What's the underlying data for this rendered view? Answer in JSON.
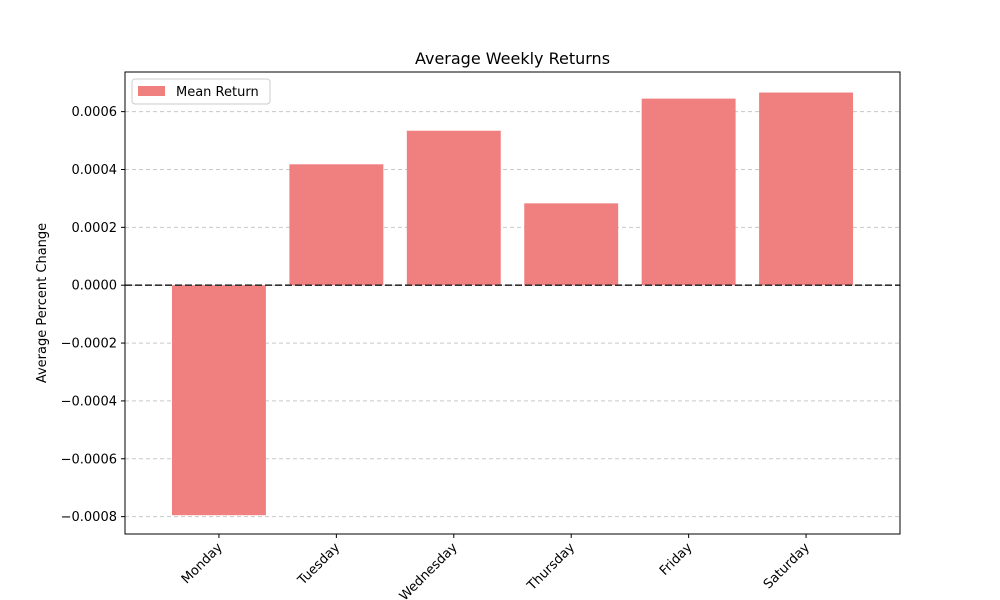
{
  "chart_data": {
    "type": "bar",
    "title": "Average Weekly Returns",
    "xlabel": "",
    "ylabel": "Average Percent Change",
    "categories": [
      "Monday",
      "Tuesday",
      "Wednesday",
      "Thursday",
      "Friday",
      "Saturday"
    ],
    "series": [
      {
        "name": "Mean Return",
        "color": "#f08080",
        "values": [
          -0.000795,
          0.000418,
          0.000534,
          0.000283,
          0.000645,
          0.000666
        ]
      }
    ],
    "ylim": [
      -0.00086,
      0.000737
    ],
    "yticks": [
      -0.0008,
      -0.0006,
      -0.0004,
      -0.0002,
      0.0,
      0.0002,
      0.0004,
      0.0006
    ],
    "ytick_labels": [
      "−0.0008",
      "−0.0006",
      "−0.0004",
      "−0.0002",
      "0.0000",
      "0.0002",
      "0.0004",
      "0.0006"
    ],
    "grid": "y-dashed",
    "zero_line": true,
    "legend": "top-left"
  }
}
